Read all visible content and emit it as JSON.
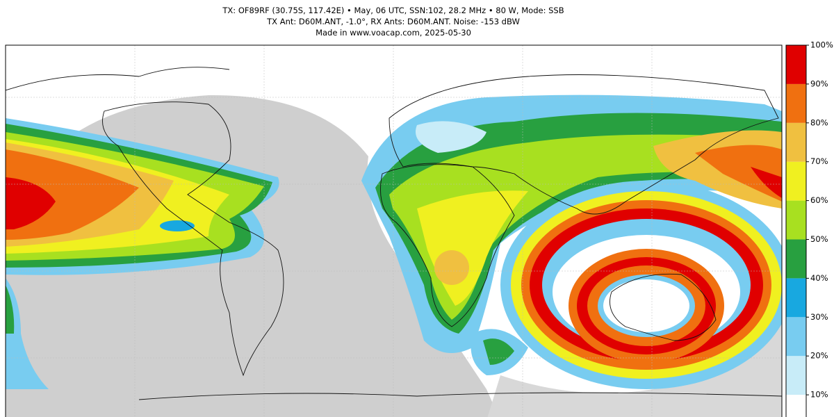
{
  "header": {
    "lines": [
      "TX: OF89RF (30.75S, 117.42E) • May, 06 UTC, SSN:102, 28.2 MHz • 80 W, Mode: SSB",
      "TX Ant: D60M.ANT, -1.0°, RX Ants: D60M.ANT. Noise: -153 dBW",
      "Made in www.voacap.com, 2025-05-30"
    ]
  },
  "colorbar": {
    "range": [
      0,
      100
    ],
    "ticks": [
      {
        "value": 10,
        "label": "10%"
      },
      {
        "value": 20,
        "label": "20%"
      },
      {
        "value": 30,
        "label": "30%"
      },
      {
        "value": 40,
        "label": "40%"
      },
      {
        "value": 50,
        "label": "50%"
      },
      {
        "value": 60,
        "label": "60%"
      },
      {
        "value": 70,
        "label": "70%"
      },
      {
        "value": 80,
        "label": "80%"
      },
      {
        "value": 90,
        "label": "90%"
      },
      {
        "value": 100,
        "label": "100%"
      }
    ],
    "colors": [
      "#ffffff",
      "#c8ecf8",
      "#78ccf0",
      "#18a8e0",
      "#28a040",
      "#a8e020",
      "#f0f020",
      "#f0c040",
      "#f07010",
      "#e00000"
    ]
  }
}
